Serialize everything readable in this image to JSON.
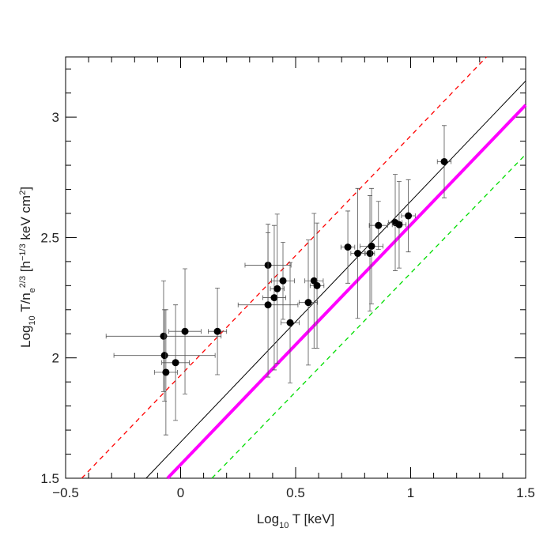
{
  "chart_data": {
    "type": "scatter",
    "xlabel_parts": [
      "Log",
      "10",
      " T [keV]"
    ],
    "ylabel_parts": [
      "Log",
      "10",
      " T/n",
      "e",
      "2/3",
      " [h",
      "−1/3",
      " keV cm",
      "2",
      "]"
    ],
    "xlim": [
      -0.5,
      1.5
    ],
    "ylim": [
      1.5,
      3.25
    ],
    "xticks": [
      {
        "value": -0.5,
        "label": "−0.5"
      },
      0,
      0.5,
      1,
      1.5
    ],
    "yticks": [
      1.5,
      2,
      2.5,
      3
    ],
    "xminorticks": [
      -0.4,
      -0.3,
      -0.2,
      -0.1,
      0.1,
      0.2,
      0.3,
      0.4,
      0.6,
      0.7,
      0.8,
      0.9,
      1.1,
      1.2,
      1.3,
      1.4
    ],
    "yminorticks": [
      1.6,
      1.7,
      1.8,
      1.9,
      2.1,
      2.2,
      2.3,
      2.4,
      2.6,
      2.7,
      2.8,
      2.9,
      3.1,
      3.2
    ],
    "series": [
      {
        "color": "#000000",
        "x": [
          -0.074,
          -0.07,
          -0.064,
          -0.022,
          0.019,
          0.16,
          0.38,
          0.38,
          0.407,
          0.42,
          0.445,
          0.476,
          0.555,
          0.58,
          0.593,
          0.727,
          0.77,
          0.823,
          0.83,
          0.86,
          0.933,
          0.95,
          0.99,
          1.146
        ],
        "xerr": [
          0.25,
          0.22,
          0.05,
          0.06,
          0.07,
          0.04,
          0.1,
          0.13,
          0.05,
          0.03,
          0.05,
          0.04,
          0.04,
          0.04,
          0.03,
          0.03,
          0.03,
          0.02,
          0.05,
          0.04,
          0.03,
          0.03,
          0.03,
          0.03
        ],
        "values": [
          2.09,
          2.01,
          1.94,
          1.98,
          2.11,
          2.11,
          2.385,
          2.22,
          2.25,
          2.287,
          2.32,
          2.146,
          2.23,
          2.32,
          2.3,
          2.46,
          2.434,
          2.434,
          2.464,
          2.55,
          2.562,
          2.553,
          2.59,
          2.815
        ],
        "yerr": [
          0.23,
          0.19,
          0.26,
          0.24,
          0.26,
          0.18,
          0.17,
          0.3,
          0.3,
          0.31,
          0.16,
          0.25,
          0.26,
          0.28,
          0.26,
          0.15,
          0.27,
          0.24,
          0.24,
          0.1,
          0.2,
          0.18,
          0.15,
          0.15
        ]
      }
    ],
    "lines": [
      {
        "color": "#ff0000",
        "dashed": true,
        "width": 1.3,
        "x": [
          -0.43,
          1.33
        ],
        "values": [
          1.5,
          3.25
        ]
      },
      {
        "color": "#000000",
        "dashed": false,
        "width": 1,
        "x": [
          -0.15,
          1.5
        ],
        "values": [
          1.5,
          3.15
        ]
      },
      {
        "color": "#ff00ff",
        "dashed": false,
        "width": 4,
        "x": [
          -0.057,
          1.5
        ],
        "values": [
          1.5,
          3.05
        ]
      },
      {
        "color": "#00dd00",
        "dashed": true,
        "width": 1.3,
        "x": [
          0.136,
          1.5
        ],
        "values": [
          1.5,
          2.845
        ]
      }
    ]
  }
}
